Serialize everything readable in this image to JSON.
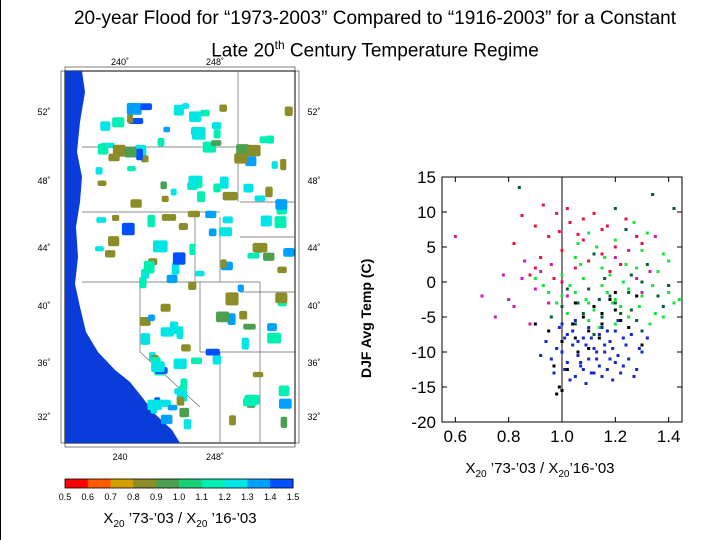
{
  "title": {
    "line1": "20-year Flood for “1973-2003” Compared to “1916-2003” for a Constant",
    "line2_pre": "Late 20",
    "line2_sup": "th",
    "line2_post": " Century Temperature Regime"
  },
  "map": {
    "lon_labels": [
      "240˚",
      "248˚",
      "240",
      "248˚"
    ],
    "lat_labels": [
      "52˚",
      "48˚",
      "44˚",
      "40˚",
      "36˚",
      "32˚"
    ],
    "ocean_color": "#0a3cdc",
    "land_color": "#ffffff"
  },
  "colorbar": {
    "ticks": [
      "0.5",
      "0.6",
      "0.7",
      "0.8",
      "0.9",
      "1.0",
      "1.1",
      "1.2",
      "1.3",
      "1.4",
      "1.5"
    ],
    "colors": [
      "#ff0000",
      "#ff5a00",
      "#d2a000",
      "#8c8c28",
      "#4ba050",
      "#19d278",
      "#00f0b4",
      "#00e6e6",
      "#00a0ff",
      "#0050ff"
    ],
    "label_main": "X",
    "label_sub1": "20",
    "label_mid": " ’73-’03 / X",
    "label_sub2": "20",
    "label_end": " ’16-’03"
  },
  "chart_data": {
    "type": "scatter",
    "title": "",
    "ylabel": "DJF Avg Temp (C)",
    "xlabel_parts": [
      "X",
      "20",
      " ’73-’03 / X",
      "20",
      "’16-’03"
    ],
    "xlim": [
      0.55,
      1.45
    ],
    "ylim": [
      -20,
      15
    ],
    "xticks": [
      "0.6",
      "0.8",
      "1.0",
      "1.2",
      "1.4"
    ],
    "yticks": [
      "15",
      "10",
      "5",
      "0",
      "-5",
      "-10",
      "-15",
      "-20"
    ],
    "reference_line_x": 1.0,
    "grid": false,
    "series": [
      {
        "color": "#e8123c",
        "values": [
          [
            0.85,
            9.5
          ],
          [
            0.9,
            8.0
          ],
          [
            0.98,
            9.8
          ],
          [
            1.02,
            10.5
          ],
          [
            1.08,
            6.0
          ],
          [
            1.15,
            7.5
          ],
          [
            1.2,
            5.0
          ],
          [
            1.24,
            9.0
          ],
          [
            1.0,
            4.5
          ],
          [
            0.95,
            6.5
          ],
          [
            0.92,
            3.5
          ],
          [
            1.05,
            2.0
          ],
          [
            1.1,
            3.0
          ],
          [
            1.18,
            1.5
          ],
          [
            0.88,
            1.0
          ],
          [
            1.12,
            9.8
          ],
          [
            1.28,
            6.5
          ],
          [
            0.97,
            0.5
          ],
          [
            1.03,
            8.5
          ],
          [
            0.82,
            5.5
          ],
          [
            1.15,
            4.0
          ],
          [
            1.06,
            6.8
          ],
          [
            0.93,
            11.0
          ],
          [
            1.22,
            2.5
          ],
          [
            1.0,
            0.0
          ],
          [
            1.08,
            9.0
          ],
          [
            0.9,
            2.0
          ],
          [
            1.3,
            5.5
          ],
          [
            0.99,
            7.2
          ],
          [
            1.17,
            8.0
          ]
        ]
      },
      {
        "color": "#c81eb4",
        "values": [
          [
            0.6,
            6.5
          ],
          [
            0.7,
            -2.0
          ],
          [
            0.78,
            1.0
          ],
          [
            0.75,
            -5.0
          ],
          [
            0.8,
            -2.5
          ],
          [
            0.85,
            0.5
          ],
          [
            0.9,
            -1.0
          ],
          [
            0.95,
            -3.0
          ],
          [
            1.35,
            6.5
          ],
          [
            1.33,
            1.5
          ],
          [
            1.3,
            -1.5
          ],
          [
            1.25,
            4.5
          ],
          [
            0.88,
            -6.0
          ],
          [
            0.82,
            -3.5
          ],
          [
            0.92,
            1.5
          ],
          [
            1.28,
            0.5
          ],
          [
            0.86,
            3.0
          ],
          [
            1.02,
            -2.0
          ],
          [
            1.2,
            3.5
          ],
          [
            0.96,
            2.5
          ]
        ]
      },
      {
        "color": "#14e63c",
        "values": [
          [
            1.0,
            -2.0
          ],
          [
            1.05,
            -1.5
          ],
          [
            1.1,
            -3.0
          ],
          [
            1.15,
            -0.5
          ],
          [
            1.2,
            -2.5
          ],
          [
            1.25,
            -1.0
          ],
          [
            1.08,
            0.5
          ],
          [
            1.12,
            -4.0
          ],
          [
            1.18,
            1.0
          ],
          [
            1.22,
            -3.5
          ],
          [
            1.3,
            -2.0
          ],
          [
            1.35,
            -4.5
          ],
          [
            1.4,
            -1.5
          ],
          [
            1.28,
            2.0
          ],
          [
            1.32,
            7.0
          ],
          [
            1.38,
            4.0
          ],
          [
            1.42,
            -3.0
          ],
          [
            0.98,
            -3.0
          ],
          [
            1.03,
            -0.5
          ],
          [
            1.07,
            2.5
          ],
          [
            1.13,
            5.0
          ],
          [
            1.17,
            -1.5
          ],
          [
            1.23,
            0.0
          ],
          [
            1.27,
            8.5
          ],
          [
            1.33,
            -6.0
          ],
          [
            1.36,
            1.5
          ],
          [
            1.1,
            7.0
          ],
          [
            1.2,
            6.0
          ],
          [
            1.05,
            3.5
          ],
          [
            0.95,
            -1.5
          ],
          [
            0.9,
            0.5
          ],
          [
            1.0,
            1.0
          ],
          [
            1.15,
            2.0
          ],
          [
            1.25,
            -5.0
          ],
          [
            1.4,
            3.0
          ],
          [
            1.3,
            4.5
          ],
          [
            1.2,
            -6.0
          ],
          [
            1.1,
            -5.5
          ],
          [
            1.02,
            -4.5
          ],
          [
            1.16,
            3.5
          ],
          [
            1.44,
            -2.5
          ],
          [
            1.38,
            -5.0
          ],
          [
            0.93,
            -0.5
          ],
          [
            1.09,
            -2.5
          ],
          [
            1.19,
            -3.0
          ],
          [
            1.24,
            2.5
          ],
          [
            1.34,
            -0.5
          ],
          [
            1.06,
            5.5
          ],
          [
            1.14,
            -6.5
          ],
          [
            1.29,
            -3.5
          ]
        ]
      },
      {
        "color": "#0a5a32",
        "values": [
          [
            0.84,
            13.5
          ],
          [
            1.34,
            12.5
          ],
          [
            1.2,
            10.5
          ],
          [
            1.12,
            4.0
          ],
          [
            1.26,
            -4.0
          ],
          [
            1.3,
            0.0
          ],
          [
            1.0,
            -3.5
          ],
          [
            1.1,
            -1.0
          ],
          [
            1.18,
            -2.0
          ],
          [
            1.22,
            -4.5
          ],
          [
            1.28,
            -5.5
          ],
          [
            1.05,
            -6.0
          ],
          [
            1.15,
            -5.0
          ],
          [
            1.36,
            -2.0
          ],
          [
            1.24,
            7.5
          ],
          [
            1.32,
            2.5
          ],
          [
            1.4,
            -0.5
          ],
          [
            1.08,
            -4.5
          ],
          [
            1.2,
            -3.0
          ],
          [
            1.16,
            0.5
          ],
          [
            1.26,
            1.0
          ],
          [
            0.96,
            -5.0
          ],
          [
            1.42,
            10.5
          ],
          [
            1.38,
            -3.5
          ],
          [
            1.12,
            -7.5
          ],
          [
            1.02,
            -1.0
          ],
          [
            1.3,
            -7.0
          ],
          [
            1.14,
            -2.5
          ],
          [
            1.06,
            -3.0
          ],
          [
            1.25,
            -1.5
          ]
        ]
      },
      {
        "color": "#000000",
        "values": [
          [
            0.97,
            -12.0
          ],
          [
            0.99,
            -15.0
          ],
          [
            1.0,
            -15.5
          ],
          [
            0.98,
            -16.0
          ],
          [
            1.05,
            -8.0
          ],
          [
            1.1,
            -7.0
          ],
          [
            1.15,
            -6.0
          ],
          [
            1.2,
            -4.0
          ],
          [
            1.0,
            -8.5
          ],
          [
            1.08,
            -5.0
          ],
          [
            1.12,
            -3.5
          ],
          [
            1.18,
            -2.5
          ],
          [
            1.25,
            -6.5
          ],
          [
            1.3,
            -9.0
          ],
          [
            1.02,
            -12.5
          ],
          [
            0.95,
            -7.0
          ],
          [
            1.05,
            -3.0
          ],
          [
            1.15,
            -4.5
          ],
          [
            1.22,
            -5.5
          ],
          [
            1.1,
            -9.5
          ],
          [
            0.9,
            -6.0
          ],
          [
            1.28,
            -2.0
          ],
          [
            1.04,
            -6.0
          ],
          [
            1.14,
            -8.0
          ],
          [
            1.06,
            -10.0
          ],
          [
            1.2,
            -1.5
          ]
        ]
      },
      {
        "color": "#1428c8",
        "values": [
          [
            1.0,
            -6.0
          ],
          [
            1.02,
            -7.5
          ],
          [
            1.04,
            -9.0
          ],
          [
            1.06,
            -10.5
          ],
          [
            1.08,
            -8.0
          ],
          [
            1.1,
            -11.0
          ],
          [
            1.12,
            -9.5
          ],
          [
            1.14,
            -12.0
          ],
          [
            1.16,
            -10.0
          ],
          [
            1.18,
            -8.5
          ],
          [
            1.2,
            -11.5
          ],
          [
            1.22,
            -13.0
          ],
          [
            1.24,
            -9.0
          ],
          [
            1.26,
            -7.5
          ],
          [
            1.28,
            -12.5
          ],
          [
            1.3,
            -10.0
          ],
          [
            1.32,
            -8.0
          ],
          [
            0.98,
            -9.5
          ],
          [
            0.96,
            -11.0
          ],
          [
            0.94,
            -8.5
          ],
          [
            0.92,
            -10.5
          ],
          [
            1.01,
            -12.5
          ],
          [
            1.03,
            -14.0
          ],
          [
            1.05,
            -13.5
          ],
          [
            1.07,
            -12.0
          ],
          [
            1.09,
            -14.5
          ],
          [
            1.11,
            -13.0
          ],
          [
            1.13,
            -11.0
          ],
          [
            1.15,
            -13.5
          ],
          [
            1.17,
            -12.5
          ],
          [
            1.19,
            -14.0
          ],
          [
            1.21,
            -10.5
          ],
          [
            1.23,
            -8.0
          ],
          [
            1.25,
            -11.0
          ],
          [
            1.27,
            -13.5
          ],
          [
            1.29,
            -9.5
          ],
          [
            1.0,
            -10.0
          ],
          [
            1.02,
            -11.5
          ],
          [
            1.04,
            -7.0
          ],
          [
            1.06,
            -8.5
          ],
          [
            1.08,
            -12.5
          ],
          [
            1.1,
            -6.5
          ],
          [
            1.12,
            -13.0
          ],
          [
            1.14,
            -7.5
          ],
          [
            1.16,
            -9.0
          ],
          [
            1.18,
            -11.0
          ],
          [
            1.2,
            -7.0
          ],
          [
            0.97,
            -13.0
          ],
          [
            1.09,
            -9.0
          ],
          [
            1.13,
            -10.0
          ],
          [
            1.07,
            -11.5
          ],
          [
            1.11,
            -8.0
          ],
          [
            1.15,
            -6.5
          ],
          [
            1.19,
            -9.5
          ],
          [
            1.23,
            -12.0
          ],
          [
            1.05,
            -5.5
          ],
          [
            1.01,
            -8.0
          ],
          [
            0.99,
            -6.5
          ],
          [
            1.17,
            -7.0
          ],
          [
            1.21,
            -5.5
          ]
        ]
      }
    ]
  }
}
